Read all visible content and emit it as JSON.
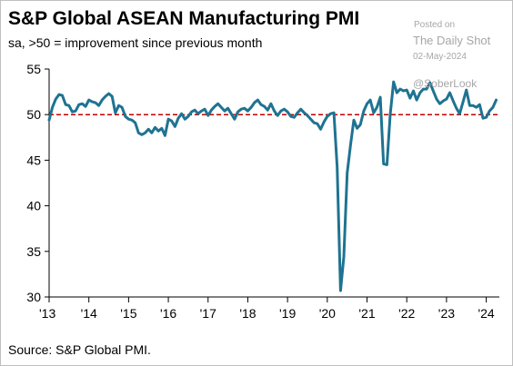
{
  "title": "S&P Global ASEAN Manufacturing PMI",
  "subtitle": "sa, >50 = improvement since previous month",
  "source": "Source: S&P Global PMI.",
  "watermark": {
    "posted": "Posted on",
    "name": "The Daily Shot",
    "date": "02-May-2024",
    "handle": "@SoberLook"
  },
  "colors": {
    "line": "#1f7391",
    "reference": "#c00000",
    "axis": "#000000"
  },
  "chart_data": {
    "type": "line",
    "x_unit": "year",
    "y_ticks": [
      30,
      35,
      40,
      45,
      50,
      55
    ],
    "ylim": [
      30,
      55
    ],
    "x_ticks": [
      {
        "x": 2013,
        "label": "'13"
      },
      {
        "x": 2014,
        "label": "'14"
      },
      {
        "x": 2015,
        "label": "'15"
      },
      {
        "x": 2016,
        "label": "'16"
      },
      {
        "x": 2017,
        "label": "'17"
      },
      {
        "x": 2018,
        "label": "'18"
      },
      {
        "x": 2019,
        "label": "'19"
      },
      {
        "x": 2020,
        "label": "'20"
      },
      {
        "x": 2021,
        "label": "'21"
      },
      {
        "x": 2022,
        "label": "'22"
      },
      {
        "x": 2023,
        "label": "'23"
      },
      {
        "x": 2024,
        "label": "'24"
      }
    ],
    "xlim": [
      2013.0,
      2024.33
    ],
    "reference_line": {
      "y": 50,
      "style": "dashed"
    },
    "grid": false,
    "series": [
      {
        "x": [
          2013.0,
          2013.083,
          2013.167,
          2013.25,
          2013.333,
          2013.417,
          2013.5,
          2013.583,
          2013.667,
          2013.75,
          2013.833,
          2013.917,
          2014.0,
          2014.083,
          2014.167,
          2014.25,
          2014.333,
          2014.417,
          2014.5,
          2014.583,
          2014.667,
          2014.75,
          2014.833,
          2014.917,
          2015.0,
          2015.083,
          2015.167,
          2015.25,
          2015.333,
          2015.417,
          2015.5,
          2015.583,
          2015.667,
          2015.75,
          2015.833,
          2015.917,
          2016.0,
          2016.083,
          2016.167,
          2016.25,
          2016.333,
          2016.417,
          2016.5,
          2016.583,
          2016.667,
          2016.75,
          2016.833,
          2016.917,
          2017.0,
          2017.083,
          2017.167,
          2017.25,
          2017.333,
          2017.417,
          2017.5,
          2017.583,
          2017.667,
          2017.75,
          2017.833,
          2017.917,
          2018.0,
          2018.083,
          2018.167,
          2018.25,
          2018.333,
          2018.417,
          2018.5,
          2018.583,
          2018.667,
          2018.75,
          2018.833,
          2018.917,
          2019.0,
          2019.083,
          2019.167,
          2019.25,
          2019.333,
          2019.417,
          2019.5,
          2019.583,
          2019.667,
          2019.75,
          2019.833,
          2019.917,
          2020.0,
          2020.083,
          2020.167,
          2020.25,
          2020.333,
          2020.417,
          2020.5,
          2020.583,
          2020.667,
          2020.75,
          2020.833,
          2020.917,
          2021.0,
          2021.083,
          2021.167,
          2021.25,
          2021.333,
          2021.417,
          2021.5,
          2021.583,
          2021.667,
          2021.75,
          2021.833,
          2021.917,
          2022.0,
          2022.083,
          2022.167,
          2022.25,
          2022.333,
          2022.417,
          2022.5,
          2022.583,
          2022.667,
          2022.75,
          2022.833,
          2022.917,
          2023.0,
          2023.083,
          2023.167,
          2023.25,
          2023.333,
          2023.417,
          2023.5,
          2023.583,
          2023.667,
          2023.75,
          2023.833,
          2023.917,
          2024.0,
          2024.083,
          2024.167,
          2024.25
        ],
        "y": [
          49.4,
          50.8,
          51.7,
          52.2,
          52.1,
          51.1,
          51.0,
          50.3,
          50.4,
          51.1,
          51.2,
          50.9,
          51.6,
          51.4,
          51.3,
          51.0,
          51.6,
          52.0,
          52.3,
          52.0,
          50.2,
          51.0,
          50.8,
          49.8,
          49.5,
          49.4,
          49.1,
          48.0,
          47.8,
          48.0,
          48.4,
          48.0,
          48.6,
          48.2,
          48.5,
          47.7,
          49.5,
          49.3,
          48.7,
          49.6,
          50.1,
          49.5,
          49.8,
          50.3,
          50.5,
          50.1,
          50.4,
          50.6,
          49.9,
          50.5,
          50.9,
          51.2,
          50.8,
          50.4,
          50.7,
          50.1,
          49.5,
          50.3,
          50.6,
          50.7,
          50.4,
          50.8,
          51.3,
          51.6,
          51.1,
          50.9,
          50.5,
          51.2,
          50.4,
          49.9,
          50.4,
          50.6,
          50.3,
          49.8,
          49.7,
          50.2,
          50.6,
          50.2,
          49.9,
          49.5,
          49.1,
          49.0,
          48.4,
          49.2,
          49.8,
          50.1,
          50.2,
          44.2,
          30.7,
          34.4,
          43.6,
          46.6,
          49.4,
          48.5,
          48.9,
          50.4,
          51.2,
          51.6,
          50.2,
          50.8,
          51.9,
          44.6,
          44.5,
          50.0,
          53.6,
          52.4,
          52.8,
          52.6,
          52.7,
          51.8,
          52.6,
          51.6,
          52.4,
          52.8,
          52.8,
          53.5,
          52.6,
          51.7,
          51.2,
          51.5,
          51.7,
          52.4,
          51.5,
          50.7,
          50.1,
          51.4,
          52.7,
          51.0,
          51.0,
          50.8,
          51.1,
          49.6,
          49.7,
          50.4,
          50.8,
          51.6
        ]
      }
    ]
  }
}
